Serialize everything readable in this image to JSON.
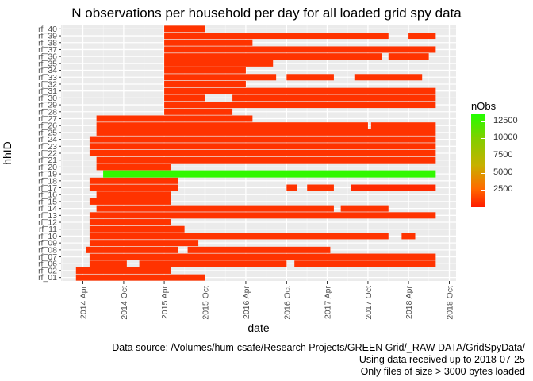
{
  "chart_data": {
    "type": "heatmap",
    "title": "N observations per household per day for all loaded grid spy data",
    "xlabel": "date",
    "ylabel": "hhID",
    "x_ticks": [
      "2014 Apr",
      "2014 Oct",
      "2015 Apr",
      "2015 Oct",
      "2016 Apr",
      "2016 Oct",
      "2017 Apr",
      "2017 Oct",
      "2018 Apr",
      "2018 Oct"
    ],
    "y_categories": [
      "rf_01",
      "rf_02",
      "rf_06",
      "rf_07",
      "rf_08",
      "rf_09",
      "rf_10",
      "rf_11",
      "rf_12",
      "rf_13",
      "rf_14",
      "rf_15",
      "rf_16",
      "rf_17",
      "rf_18",
      "rf_19",
      "rf_20",
      "rf_21",
      "rf_22",
      "rf_23",
      "rf_24",
      "rf_25",
      "rf_26",
      "rf_27",
      "rf_28",
      "rf_29",
      "rf_30",
      "rf_31",
      "rf_32",
      "rf_33",
      "rf_34",
      "rf_35",
      "rf_36",
      "rf_37",
      "rf_38",
      "rf_39",
      "rf_40"
    ],
    "legend": {
      "title": "nObs",
      "ticks": [
        2500,
        5000,
        7500,
        10000,
        12500
      ],
      "range": [
        0,
        13500
      ],
      "colors": {
        "low": "#ff1a00",
        "mid": "#c8b000",
        "high": "#22ff00"
      },
      "placement": "right"
    },
    "grid": true,
    "series": [
      {
        "hh": "rf_01",
        "segments": [
          [
            "2014-03-01",
            "2015-09-30",
            1440
          ]
        ]
      },
      {
        "hh": "rf_02",
        "segments": [
          [
            "2014-03-01",
            "2015-04-30",
            1440
          ]
        ]
      },
      {
        "hh": "rf_06",
        "segments": [
          [
            "2014-05-01",
            "2014-10-15",
            1440
          ],
          [
            "2014-12-10",
            "2016-10-01",
            1440
          ],
          [
            "2016-11-05",
            "2018-08-01",
            1440
          ]
        ]
      },
      {
        "hh": "rf_07",
        "segments": [
          [
            "2014-05-01",
            "2018-08-01",
            1440
          ]
        ]
      },
      {
        "hh": "rf_08",
        "segments": [
          [
            "2014-04-15",
            "2015-06-01",
            1440
          ],
          [
            "2015-07-15",
            "2017-04-15",
            1440
          ]
        ]
      },
      {
        "hh": "rf_09",
        "segments": [
          [
            "2014-05-01",
            "2015-09-01",
            1440
          ]
        ]
      },
      {
        "hh": "rf_10",
        "segments": [
          [
            "2014-05-01",
            "2018-01-01",
            1440
          ],
          [
            "2018-03-01",
            "2018-05-01",
            1440
          ]
        ]
      },
      {
        "hh": "rf_11",
        "segments": [
          [
            "2014-05-01",
            "2015-07-01",
            1440
          ]
        ]
      },
      {
        "hh": "rf_12",
        "segments": [
          [
            "2014-05-01",
            "2015-05-01",
            1440
          ]
        ]
      },
      {
        "hh": "rf_13",
        "segments": [
          [
            "2014-05-01",
            "2018-08-01",
            1440
          ]
        ]
      },
      {
        "hh": "rf_14",
        "segments": [
          [
            "2014-06-01",
            "2017-05-01",
            1440
          ],
          [
            "2017-06-01",
            "2018-01-01",
            1440
          ]
        ]
      },
      {
        "hh": "rf_15",
        "segments": [
          [
            "2014-05-01",
            "2015-05-01",
            1440
          ]
        ]
      },
      {
        "hh": "rf_16",
        "segments": [
          [
            "2014-06-01",
            "2015-05-01",
            1440
          ]
        ]
      },
      {
        "hh": "rf_17",
        "segments": [
          [
            "2014-05-01",
            "2015-06-01",
            1440
          ],
          [
            "2016-10-01",
            "2016-11-15",
            1440
          ],
          [
            "2017-01-01",
            "2017-05-01",
            1440
          ],
          [
            "2017-07-15",
            "2018-08-01",
            900
          ]
        ]
      },
      {
        "hh": "rf_18",
        "segments": [
          [
            "2014-05-01",
            "2015-06-01",
            1440
          ]
        ]
      },
      {
        "hh": "rf_19",
        "segments": [
          [
            "2014-07-01",
            "2018-08-01",
            12960
          ]
        ]
      },
      {
        "hh": "rf_20",
        "segments": [
          [
            "2014-06-01",
            "2015-05-01",
            1440
          ]
        ]
      },
      {
        "hh": "rf_21",
        "segments": [
          [
            "2014-06-01",
            "2018-08-01",
            1440
          ]
        ]
      },
      {
        "hh": "rf_22",
        "segments": [
          [
            "2014-05-01",
            "2018-08-01",
            1440
          ]
        ]
      },
      {
        "hh": "rf_23",
        "segments": [
          [
            "2014-05-01",
            "2018-08-01",
            1440
          ]
        ]
      },
      {
        "hh": "rf_24",
        "segments": [
          [
            "2014-05-01",
            "2018-08-01",
            1440
          ]
        ]
      },
      {
        "hh": "rf_25",
        "segments": [
          [
            "2014-06-01",
            "2018-08-01",
            1440
          ]
        ]
      },
      {
        "hh": "rf_26",
        "segments": [
          [
            "2014-06-01",
            "2017-10-01",
            1440
          ],
          [
            "2017-10-15",
            "2018-08-01",
            1440
          ]
        ]
      },
      {
        "hh": "rf_27",
        "segments": [
          [
            "2014-06-01",
            "2016-05-01",
            1440
          ]
        ]
      },
      {
        "hh": "rf_28",
        "segments": [
          [
            "2015-04-01",
            "2016-02-01",
            1440
          ]
        ]
      },
      {
        "hh": "rf_29",
        "segments": [
          [
            "2015-04-01",
            "2018-08-01",
            1440
          ]
        ]
      },
      {
        "hh": "rf_30",
        "segments": [
          [
            "2015-04-01",
            "2015-10-01",
            1440
          ],
          [
            "2016-02-01",
            "2018-08-01",
            1440
          ]
        ]
      },
      {
        "hh": "rf_31",
        "segments": [
          [
            "2015-04-01",
            "2018-08-01",
            1440
          ]
        ]
      },
      {
        "hh": "rf_32",
        "segments": [
          [
            "2015-04-01",
            "2016-04-01",
            1440
          ]
        ]
      },
      {
        "hh": "rf_33",
        "segments": [
          [
            "2015-04-01",
            "2016-08-15",
            1440
          ],
          [
            "2016-10-01",
            "2017-05-01",
            1440
          ],
          [
            "2017-08-01",
            "2018-06-01",
            1440
          ]
        ]
      },
      {
        "hh": "rf_34",
        "segments": [
          [
            "2015-04-01",
            "2016-04-01",
            1440
          ]
        ]
      },
      {
        "hh": "rf_35",
        "segments": [
          [
            "2015-04-01",
            "2016-08-01",
            1440
          ]
        ]
      },
      {
        "hh": "rf_36",
        "segments": [
          [
            "2015-04-01",
            "2017-12-01",
            1440
          ],
          [
            "2018-01-01",
            "2018-07-01",
            1440
          ]
        ]
      },
      {
        "hh": "rf_37",
        "segments": [
          [
            "2015-04-01",
            "2018-08-01",
            1440
          ]
        ]
      },
      {
        "hh": "rf_38",
        "segments": [
          [
            "2015-04-01",
            "2016-05-01",
            1440
          ]
        ]
      },
      {
        "hh": "rf_39",
        "segments": [
          [
            "2015-04-01",
            "2018-01-01",
            1440
          ],
          [
            "2018-04-01",
            "2018-08-01",
            1440
          ]
        ]
      },
      {
        "hh": "rf_40",
        "segments": [
          [
            "2015-04-01",
            "2015-10-01",
            1440
          ]
        ]
      }
    ]
  },
  "caption": {
    "line1": "Data source: /Volumes/hum-csafe/Research Projects/GREEN Grid/_RAW DATA/GridSpyData/",
    "line2": "Using data received up to 2018-07-25",
    "line3": "Only files of size > 3000 bytes loaded"
  }
}
